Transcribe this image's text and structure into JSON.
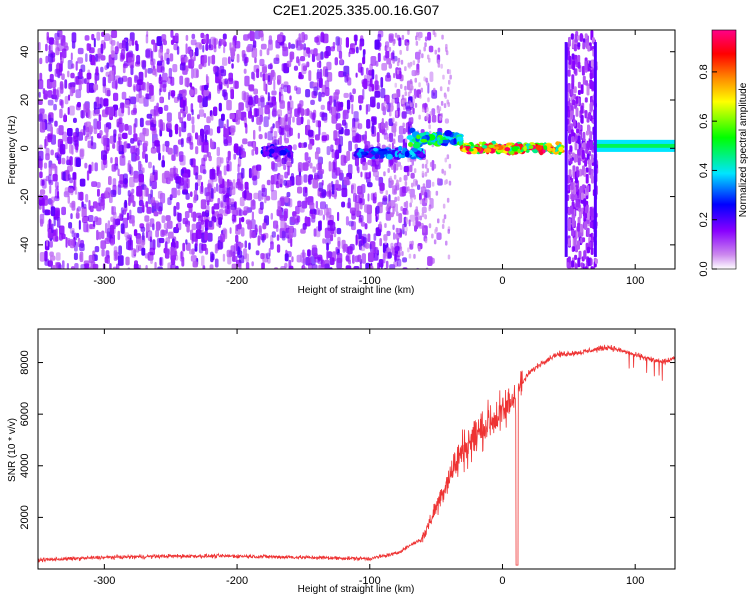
{
  "title": "C2E1.2025.335.00.16.G07",
  "chart_data": [
    {
      "type": "heatmap",
      "name": "spectrogram",
      "xlabel": "Height of straight line (km)",
      "ylabel": "Frequency (Hz)",
      "xlim": [
        -350,
        130
      ],
      "ylim": [
        -50,
        49
      ],
      "xticks": [
        "-300",
        "-200",
        "-100",
        "0",
        "100"
      ],
      "yticks": [
        "-40",
        "-20",
        "0",
        "20",
        "40"
      ],
      "colorbar": {
        "label": "Normalized spectral amplitude",
        "range": [
          0,
          0.97
        ],
        "ticks": [
          "0.0",
          "0.2",
          "0.4",
          "0.6",
          "0.8"
        ],
        "colormap": [
          "#ffffff",
          "#cc88ee",
          "#8800ff",
          "#0000ff",
          "#00e5ff",
          "#00ff00",
          "#ffff00",
          "#ff8800",
          "#ff0000",
          "#ff0088"
        ]
      },
      "features": [
        {
          "x_from": -350,
          "x_to": -60,
          "freq_from": -50,
          "freq_to": 49,
          "amplitude": 0.08
        },
        {
          "x_from": -180,
          "x_to": -160,
          "freq": -1,
          "amplitude": 0.25
        },
        {
          "x_from": -110,
          "x_to": -60,
          "freq": -2,
          "amplitude": 0.35
        },
        {
          "x_from": -70,
          "x_to": -30,
          "freq": 4,
          "amplitude": 0.5
        },
        {
          "x_from": -30,
          "x_to": 45,
          "freq": 0,
          "amplitude": 0.85
        },
        {
          "x_from": 48,
          "x_to": 70,
          "freq_from": -50,
          "freq_to": 49,
          "amplitude": 0.1
        },
        {
          "x_from": 70,
          "x_to": 130,
          "freq": 1,
          "amplitude": 0.5
        }
      ]
    },
    {
      "type": "line",
      "name": "snr",
      "xlabel": "Height of straight line (km)",
      "ylabel": "SNR (10 * v/v)",
      "xlim": [
        -350,
        130
      ],
      "ylim": [
        0,
        9300
      ],
      "xticks": [
        "-300",
        "-200",
        "-100",
        "0",
        "100"
      ],
      "yticks": [
        "2000",
        "4000",
        "6000",
        "8000"
      ],
      "color": "#ee3333",
      "series": [
        {
          "name": "SNR",
          "x": [
            -350,
            -300,
            -250,
            -200,
            -150,
            -100,
            -80,
            -60,
            -50,
            -40,
            -30,
            -20,
            -10,
            0,
            10,
            20,
            30,
            40,
            60,
            80,
            100,
            120,
            130
          ],
          "y": [
            350,
            450,
            500,
            500,
            450,
            400,
            600,
            1200,
            2400,
            3600,
            4600,
            5200,
            5700,
            6000,
            6800,
            7600,
            8000,
            8300,
            8400,
            8600,
            8300,
            8000,
            8200
          ]
        }
      ]
    }
  ]
}
